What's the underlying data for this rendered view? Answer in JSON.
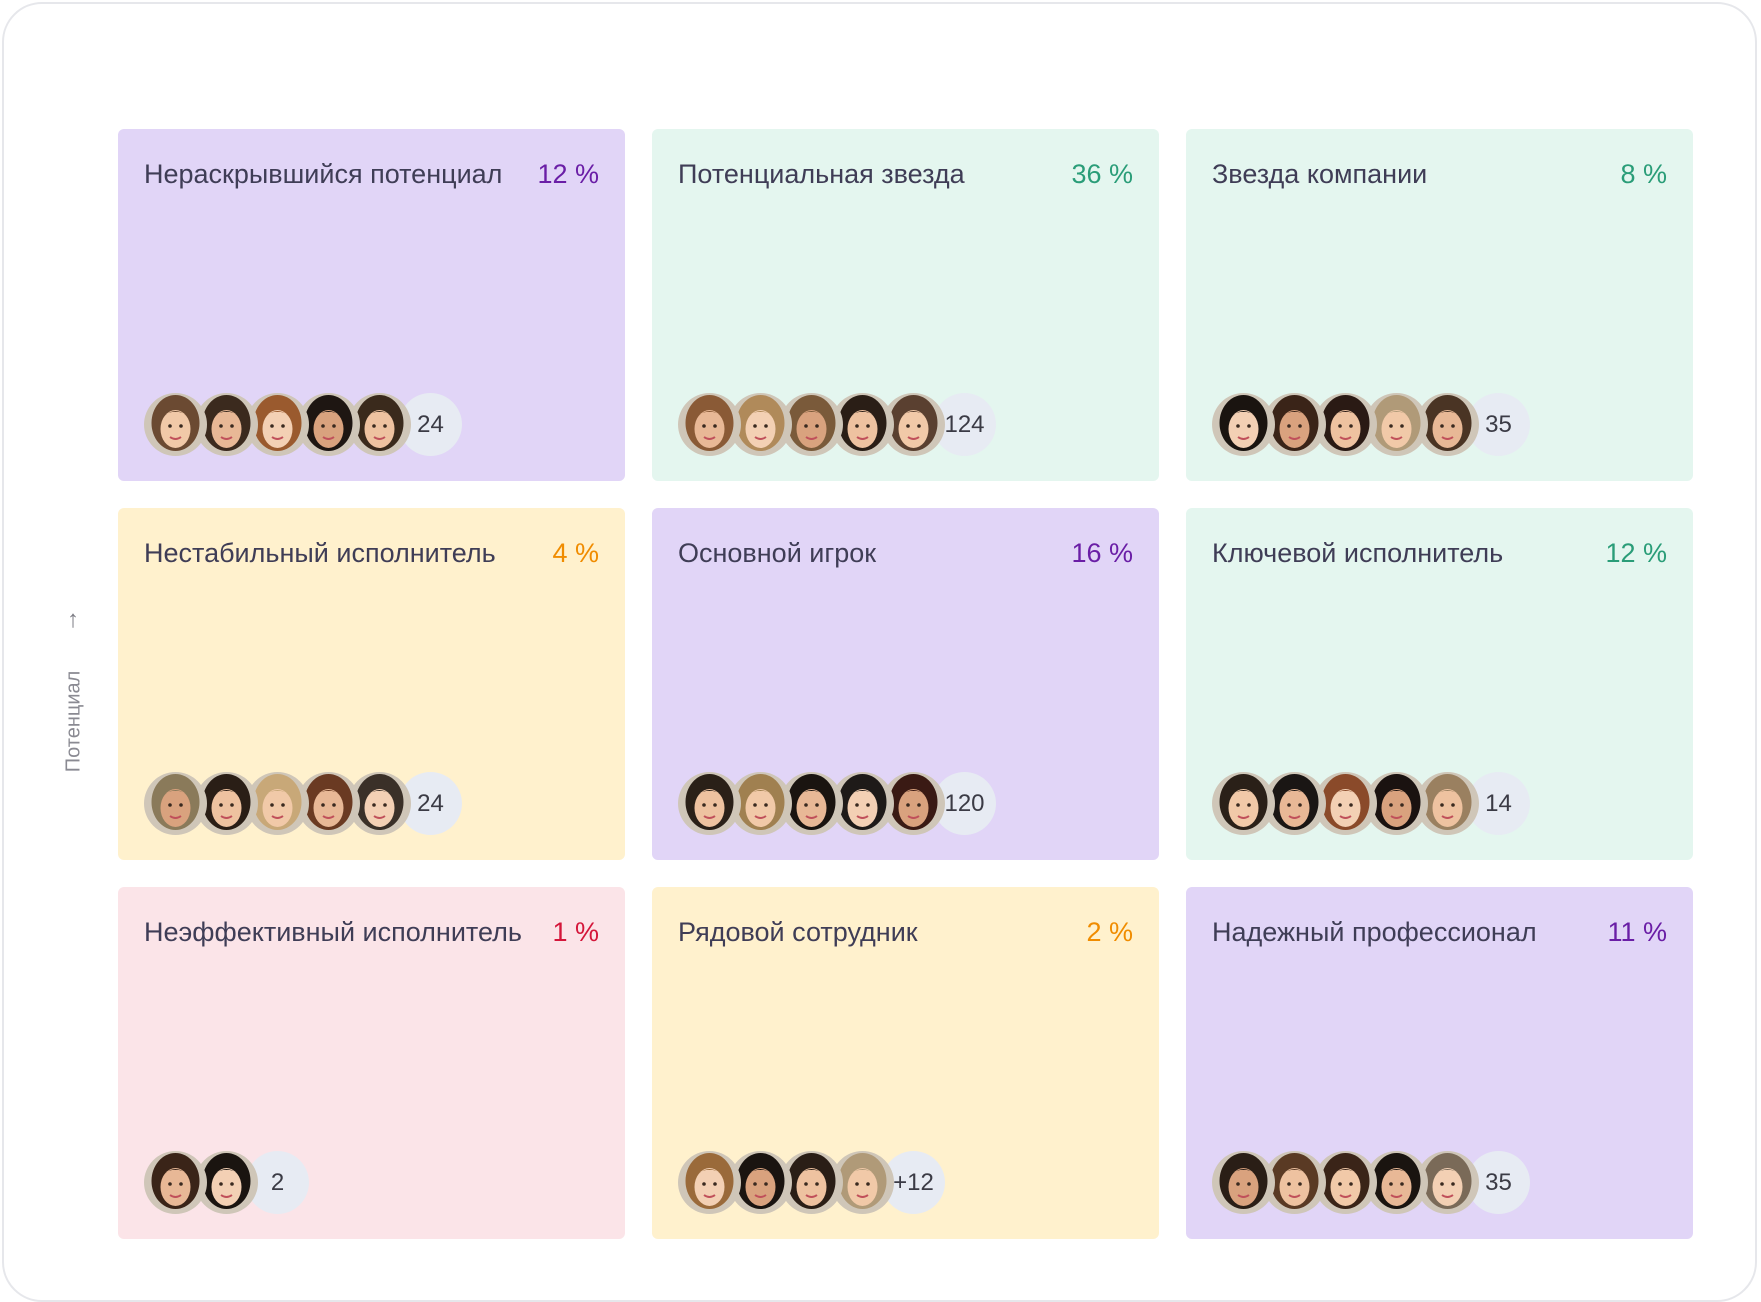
{
  "axis": {
    "label": "Потенциал",
    "arrow_icon": "arrow-up-icon"
  },
  "colors": {
    "purple_bg": "#e1d5f7",
    "green_bg": "#e4f6ef",
    "yellow_bg": "#fff1cd",
    "pink_bg": "#fbe4e8",
    "purple": "#6a1ea6",
    "green": "#2a9d78",
    "orange": "#f08c00",
    "red": "#d4163a"
  },
  "cells": [
    {
      "title": "Нераскрывшийся потенциал",
      "percent": "12 %",
      "bg": "purple_bg",
      "accent": "purple",
      "count": "24",
      "avatars": [
        "#6b4a32",
        "#3b2a1e",
        "#9a5a2e",
        "#1e1612",
        "#3a2a1c"
      ]
    },
    {
      "title": "Потенциальная звезда",
      "percent": "36 %",
      "bg": "green_bg",
      "accent": "green",
      "count": "124",
      "avatars": [
        "#8a5a36",
        "#b08a5a",
        "#7a5a3a",
        "#2a1e16",
        "#5a4030"
      ]
    },
    {
      "title": "Звезда компании",
      "percent": "8 %",
      "bg": "green_bg",
      "accent": "green",
      "count": "35",
      "avatars": [
        "#1a1410",
        "#3a2418",
        "#2a1a14",
        "#b09a78",
        "#4a3424"
      ]
    },
    {
      "title": "Нестабильный исполнитель",
      "percent": "4 %",
      "bg": "yellow_bg",
      "accent": "orange",
      "count": "24",
      "avatars": [
        "#8a7a5a",
        "#2a1e16",
        "#c8a878",
        "#6a3a22",
        "#3a3028"
      ]
    },
    {
      "title": "Основной игрок",
      "percent": "16 %",
      "bg": "purple_bg",
      "accent": "purple",
      "count": "120",
      "avatars": [
        "#2a2018",
        "#a08050",
        "#1a1410",
        "#1e1a18",
        "#3a1a14"
      ]
    },
    {
      "title": "Ключевой исполнитель",
      "percent": "12 %",
      "bg": "green_bg",
      "accent": "green",
      "count": "14",
      "avatars": [
        "#2a2018",
        "#1a1614",
        "#8a4a2a",
        "#1a1210",
        "#9a8060"
      ]
    },
    {
      "title": "Неэффективный исполнитель",
      "percent": "1 %",
      "bg": "pink_bg",
      "accent": "red",
      "count": "2",
      "avatars": [
        "#3a2418",
        "#1a1410"
      ]
    },
    {
      "title": "Рядовой сотрудник",
      "percent": "2 %",
      "bg": "yellow_bg",
      "accent": "orange",
      "count": "+12",
      "avatars": [
        "#9a6a3a",
        "#1a1410",
        "#2a1e16",
        "#b09a78"
      ]
    },
    {
      "title": "Надежный профессионал",
      "percent": "11 %",
      "bg": "purple_bg",
      "accent": "purple",
      "count": "35",
      "avatars": [
        "#2a1e16",
        "#5a3a24",
        "#3a2418",
        "#1a1410",
        "#7a6a58"
      ]
    }
  ]
}
